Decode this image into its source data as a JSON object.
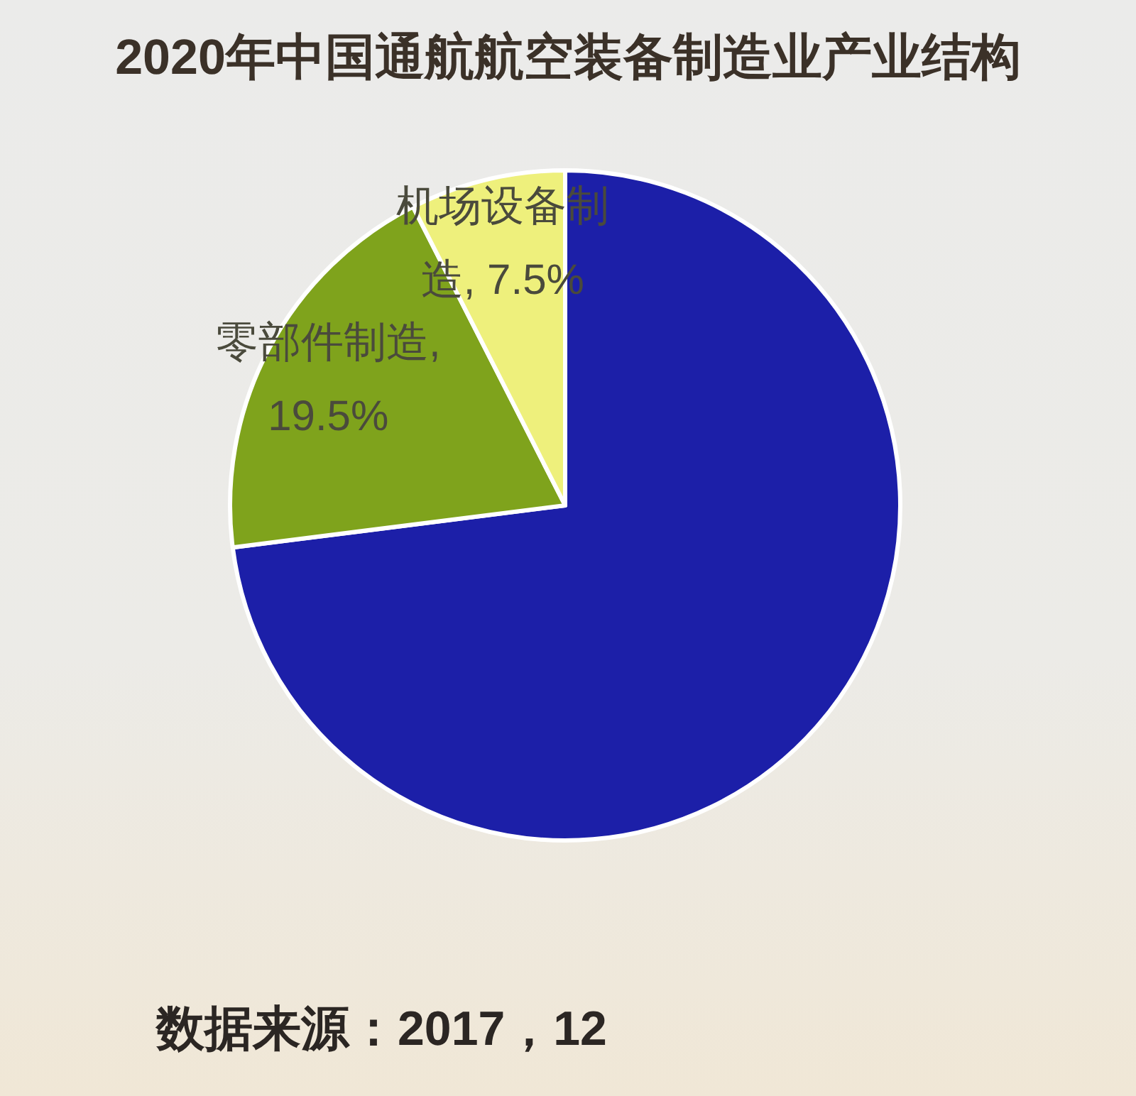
{
  "chart_data": {
    "type": "pie",
    "title": "2020年中国通航航空装备制造业产业结构",
    "categories": [
      null,
      null,
      null
    ],
    "values": [
      73,
      19.5,
      7.5
    ],
    "colors": [
      "#1c1fa8",
      "#7fa31c",
      "#eef07c"
    ],
    "value_labels": [
      null,
      "零部件制造, 19.5%",
      "机场设备制造, 7.5%"
    ],
    "annotations": [
      "数据来源：2017，12"
    ]
  }
}
